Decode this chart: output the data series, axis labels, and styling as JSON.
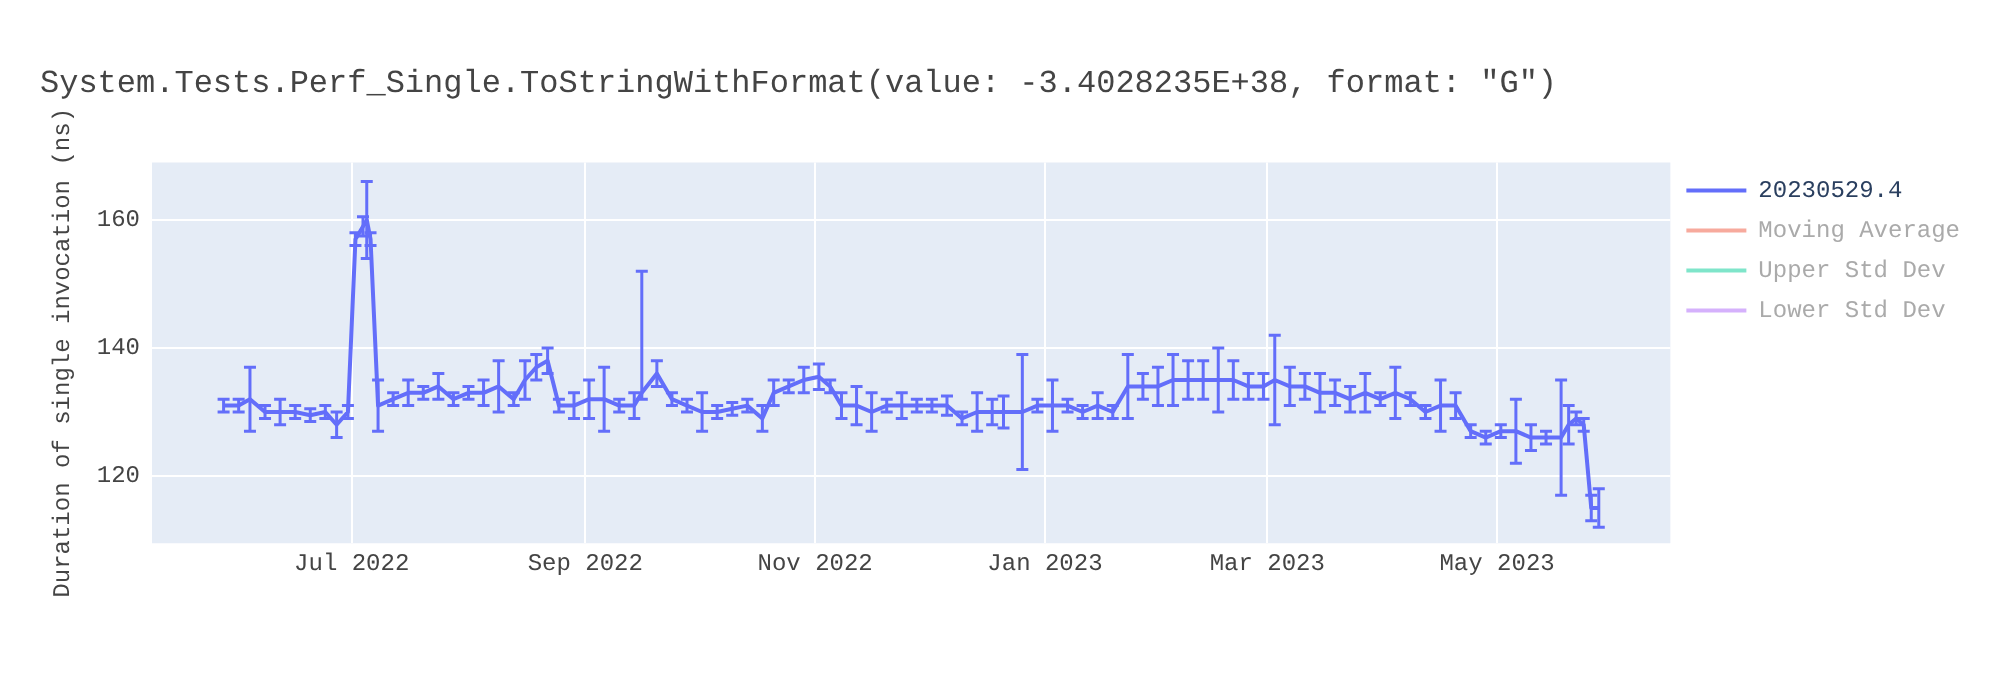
{
  "chart_data": {
    "type": "line",
    "title": "System.Tests.Perf_Single.ToStringWithFormat(value: -3.4028235E+38, format: \"G\")",
    "ylabel": "Duration of single invocation (ns)",
    "x": [
      "2022-05-28",
      "2022-06-01",
      "2022-06-04",
      "2022-06-08",
      "2022-06-12",
      "2022-06-16",
      "2022-06-20",
      "2022-06-24",
      "2022-06-27",
      "2022-06-30",
      "2022-07-02",
      "2022-07-04",
      "2022-07-05",
      "2022-07-06",
      "2022-07-08",
      "2022-07-12",
      "2022-07-16",
      "2022-07-20",
      "2022-07-24",
      "2022-07-28",
      "2022-08-01",
      "2022-08-05",
      "2022-08-09",
      "2022-08-13",
      "2022-08-16",
      "2022-08-19",
      "2022-08-22",
      "2022-08-25",
      "2022-08-29",
      "2022-09-02",
      "2022-09-06",
      "2022-09-10",
      "2022-09-14",
      "2022-09-16",
      "2022-09-20",
      "2022-09-24",
      "2022-09-28",
      "2022-10-02",
      "2022-10-06",
      "2022-10-10",
      "2022-10-14",
      "2022-10-18",
      "2022-10-21",
      "2022-10-25",
      "2022-10-29",
      "2022-11-02",
      "2022-11-05",
      "2022-11-08",
      "2022-11-12",
      "2022-11-16",
      "2022-11-20",
      "2022-11-24",
      "2022-11-28",
      "2022-12-02",
      "2022-12-06",
      "2022-12-10",
      "2022-12-14",
      "2022-12-18",
      "2022-12-21",
      "2022-12-26",
      "2022-12-30",
      "2023-01-03",
      "2023-01-07",
      "2023-01-11",
      "2023-01-15",
      "2023-01-19",
      "2023-01-23",
      "2023-01-27",
      "2023-01-31",
      "2023-02-04",
      "2023-02-08",
      "2023-02-12",
      "2023-02-16",
      "2023-02-20",
      "2023-02-24",
      "2023-02-28",
      "2023-03-03",
      "2023-03-07",
      "2023-03-11",
      "2023-03-15",
      "2023-03-19",
      "2023-03-23",
      "2023-03-27",
      "2023-03-31",
      "2023-04-04",
      "2023-04-08",
      "2023-04-12",
      "2023-04-16",
      "2023-04-20",
      "2023-04-24",
      "2023-04-28",
      "2023-05-02",
      "2023-05-06",
      "2023-05-10",
      "2023-05-14",
      "2023-05-18",
      "2023-05-20",
      "2023-05-22",
      "2023-05-24",
      "2023-05-26",
      "2023-05-28"
    ],
    "series": [
      {
        "name": "20230529.4",
        "color": "#636efa",
        "values": [
          131,
          131,
          132,
          130,
          130,
          130,
          129.5,
          130,
          128,
          130,
          157,
          159,
          160,
          157,
          131,
          132,
          133,
          133,
          134,
          132,
          133,
          133,
          134,
          132,
          135,
          137,
          138,
          131,
          131,
          132,
          132,
          131,
          131,
          133,
          136,
          132,
          131,
          130,
          130,
          130.5,
          131,
          129,
          133,
          134,
          135,
          135.5,
          134,
          131,
          131,
          130,
          131,
          131,
          131,
          131,
          131,
          129,
          130,
          130,
          130,
          130,
          131,
          131,
          131,
          130,
          131,
          130,
          134,
          134,
          134,
          135,
          135,
          135,
          135,
          135,
          134,
          134,
          135,
          134,
          134,
          133,
          133,
          132,
          133,
          132,
          133,
          132,
          130,
          131,
          131,
          127,
          126,
          127,
          127,
          126,
          126,
          126,
          128,
          129,
          128,
          115,
          115
        ],
        "errors": [
          1,
          1,
          5,
          1,
          2,
          1,
          1,
          1,
          2,
          1,
          1,
          1.5,
          6,
          1,
          4,
          1,
          2,
          1,
          2,
          1,
          1,
          2,
          4,
          1,
          3,
          2,
          2,
          1,
          2,
          3,
          5,
          1,
          2,
          [
            132,
            152
          ],
          2,
          1,
          1,
          3,
          1,
          1,
          1,
          2,
          2,
          1,
          2,
          2,
          1,
          2,
          3,
          3,
          1,
          2,
          1,
          1,
          1.5,
          1,
          3,
          2,
          2.5,
          9,
          1,
          4,
          1,
          1,
          2,
          1,
          5,
          2,
          3,
          4,
          3,
          3,
          5,
          3,
          2,
          2,
          7,
          3,
          2,
          3,
          2,
          2,
          3,
          1,
          4,
          1,
          1,
          4,
          2,
          1,
          1,
          1,
          5,
          2,
          1,
          9,
          3,
          1,
          1,
          2,
          3
        ]
      },
      {
        "name": "Moving Average",
        "color": "#ef553b",
        "values": [
          null,
          null,
          null,
          null,
          null,
          null,
          null,
          null,
          null,
          null,
          null,
          null,
          null,
          null,
          null,
          null,
          null,
          null,
          null,
          null,
          null,
          null,
          null,
          null,
          null,
          null,
          null,
          null,
          null,
          null,
          null,
          null,
          null,
          null,
          null,
          null,
          null,
          null,
          null,
          null,
          null,
          null,
          null,
          null,
          null,
          null,
          null,
          null,
          null,
          null,
          null,
          null,
          null,
          null,
          null,
          null,
          null,
          null,
          null,
          null,
          null,
          null,
          null,
          null,
          null,
          null,
          null,
          null,
          null,
          null,
          null,
          null,
          null,
          null,
          null,
          null,
          null,
          null,
          null,
          null,
          null,
          null,
          null,
          null,
          null,
          null,
          null,
          null,
          null,
          null,
          null,
          null,
          null,
          null,
          null,
          null,
          null,
          null,
          null,
          null,
          null
        ]
      },
      {
        "name": "Upper Std Dev",
        "color": "#00cc96",
        "values": [
          null,
          null,
          null,
          null,
          null,
          null,
          null,
          null,
          null,
          null,
          null,
          null,
          null,
          null,
          null,
          null,
          null,
          null,
          null,
          null,
          null,
          null,
          null,
          null,
          null,
          null,
          null,
          null,
          null,
          null,
          null,
          null,
          null,
          null,
          null,
          null,
          null,
          null,
          null,
          null,
          null,
          null,
          null,
          null,
          null,
          null,
          null,
          null,
          null,
          null,
          null,
          null,
          null,
          null,
          null,
          null,
          null,
          null,
          null,
          null,
          null,
          null,
          null,
          null,
          null,
          null,
          null,
          null,
          null,
          null,
          null,
          null,
          null,
          null,
          null,
          null,
          null,
          null,
          null,
          null,
          null,
          null,
          null,
          null,
          null,
          null,
          null,
          null,
          null,
          null,
          null,
          null,
          null,
          null,
          null,
          null,
          null,
          null,
          null,
          null,
          null
        ]
      },
      {
        "name": "Lower Std Dev",
        "color": "#ab63fa",
        "values": [
          null,
          null,
          null,
          null,
          null,
          null,
          null,
          null,
          null,
          null,
          null,
          null,
          null,
          null,
          null,
          null,
          null,
          null,
          null,
          null,
          null,
          null,
          null,
          null,
          null,
          null,
          null,
          null,
          null,
          null,
          null,
          null,
          null,
          null,
          null,
          null,
          null,
          null,
          null,
          null,
          null,
          null,
          null,
          null,
          null,
          null,
          null,
          null,
          null,
          null,
          null,
          null,
          null,
          null,
          null,
          null,
          null,
          null,
          null,
          null,
          null,
          null,
          null,
          null,
          null,
          null,
          null,
          null,
          null,
          null,
          null,
          null,
          null,
          null,
          null,
          null,
          null,
          null,
          null,
          null,
          null,
          null,
          null,
          null,
          null,
          null,
          null,
          null,
          null,
          null,
          null,
          null,
          null,
          null,
          null,
          null,
          null,
          null,
          null,
          null,
          null
        ]
      }
    ],
    "xlim": [
      "2022-05-09",
      "2023-06-16"
    ],
    "xticks": [
      {
        "value": "2022-07-01",
        "label": "Jul 2022"
      },
      {
        "value": "2022-09-01",
        "label": "Sep 2022"
      },
      {
        "value": "2022-11-01",
        "label": "Nov 2022"
      },
      {
        "value": "2023-01-01",
        "label": "Jan 2023"
      },
      {
        "value": "2023-03-01",
        "label": "Mar 2023"
      },
      {
        "value": "2023-05-01",
        "label": "May 2023"
      }
    ],
    "ylim": [
      109.5,
      169
    ],
    "yticks": [
      120,
      140,
      160
    ],
    "grid": true,
    "legend": "right"
  }
}
